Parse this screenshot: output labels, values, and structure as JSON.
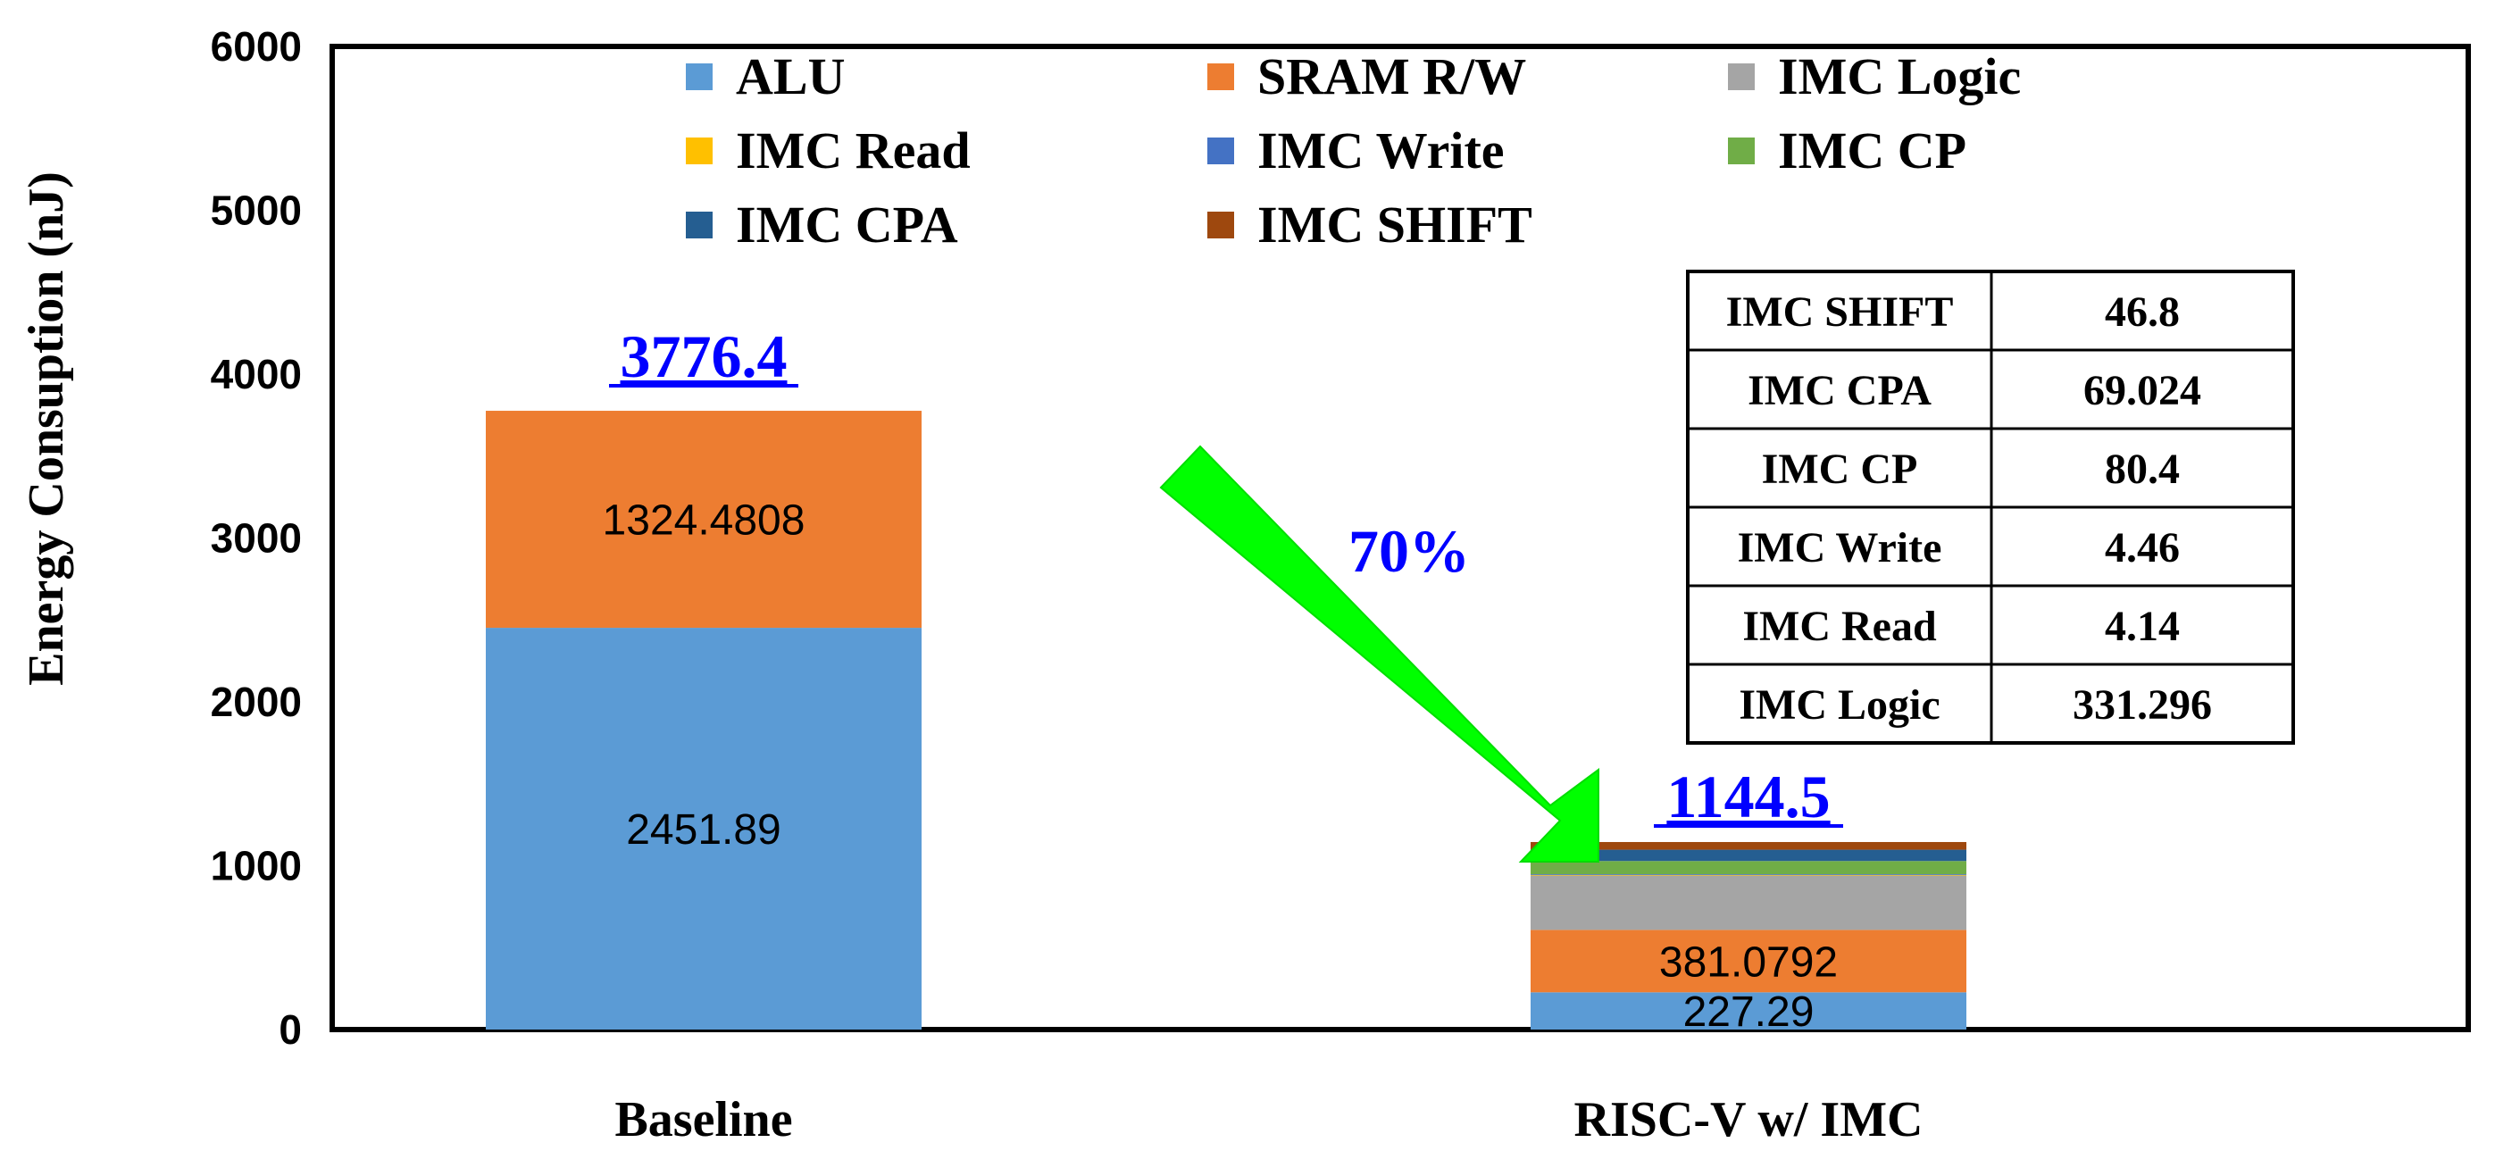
{
  "chart_data": {
    "type": "bar",
    "stacked": true,
    "ylabel": "Energy Consuption (nJ)",
    "xlabel": "",
    "ylim": [
      0,
      6000
    ],
    "y_ticks": [
      "0",
      "1000",
      "2000",
      "3000",
      "4000",
      "5000",
      "6000"
    ],
    "categories": [
      "Baseline",
      "RISC-V w/ IMC"
    ],
    "series": [
      {
        "name": "ALU",
        "color": "#5B9BD5",
        "values": [
          2451.89,
          227.29
        ],
        "labels": [
          "2451.89",
          "227.29"
        ]
      },
      {
        "name": "SRAM R/W",
        "color": "#ED7D31",
        "values": [
          1324.4808,
          381.0792
        ],
        "labels": [
          "1324.4808",
          "381.0792"
        ]
      },
      {
        "name": "IMC Logic",
        "color": "#A5A5A5",
        "values": [
          0,
          331.296
        ],
        "labels": [
          "",
          ""
        ]
      },
      {
        "name": "IMC Read",
        "color": "#FFC000",
        "values": [
          0,
          4.14
        ],
        "labels": [
          "",
          ""
        ]
      },
      {
        "name": "IMC Write",
        "color": "#4472C4",
        "values": [
          0,
          4.46
        ],
        "labels": [
          "",
          ""
        ]
      },
      {
        "name": "IMC CP",
        "color": "#70AD47",
        "values": [
          0,
          80.4
        ],
        "labels": [
          "",
          ""
        ]
      },
      {
        "name": "IMC CPA",
        "color": "#255E91",
        "values": [
          0,
          69.024
        ],
        "labels": [
          "",
          ""
        ]
      },
      {
        "name": "IMC SHIFT",
        "color": "#9E480E",
        "values": [
          0,
          46.8
        ],
        "labels": [
          "",
          ""
        ]
      }
    ],
    "totals": [
      "3776.4",
      "1144.5"
    ],
    "reduction_label": "70%",
    "arrow_color": "#00FF00",
    "total_label_color": "#0000FF",
    "legend_position": "top",
    "inset_table": {
      "rows": [
        {
          "name": "IMC SHIFT",
          "value": "46.8"
        },
        {
          "name": "IMC CPA",
          "value": "69.024"
        },
        {
          "name": "IMC CP",
          "value": "80.4"
        },
        {
          "name": "IMC Write",
          "value": "4.46"
        },
        {
          "name": "IMC Read",
          "value": "4.14"
        },
        {
          "name": "IMC Logic",
          "value": "331.296"
        }
      ]
    }
  }
}
